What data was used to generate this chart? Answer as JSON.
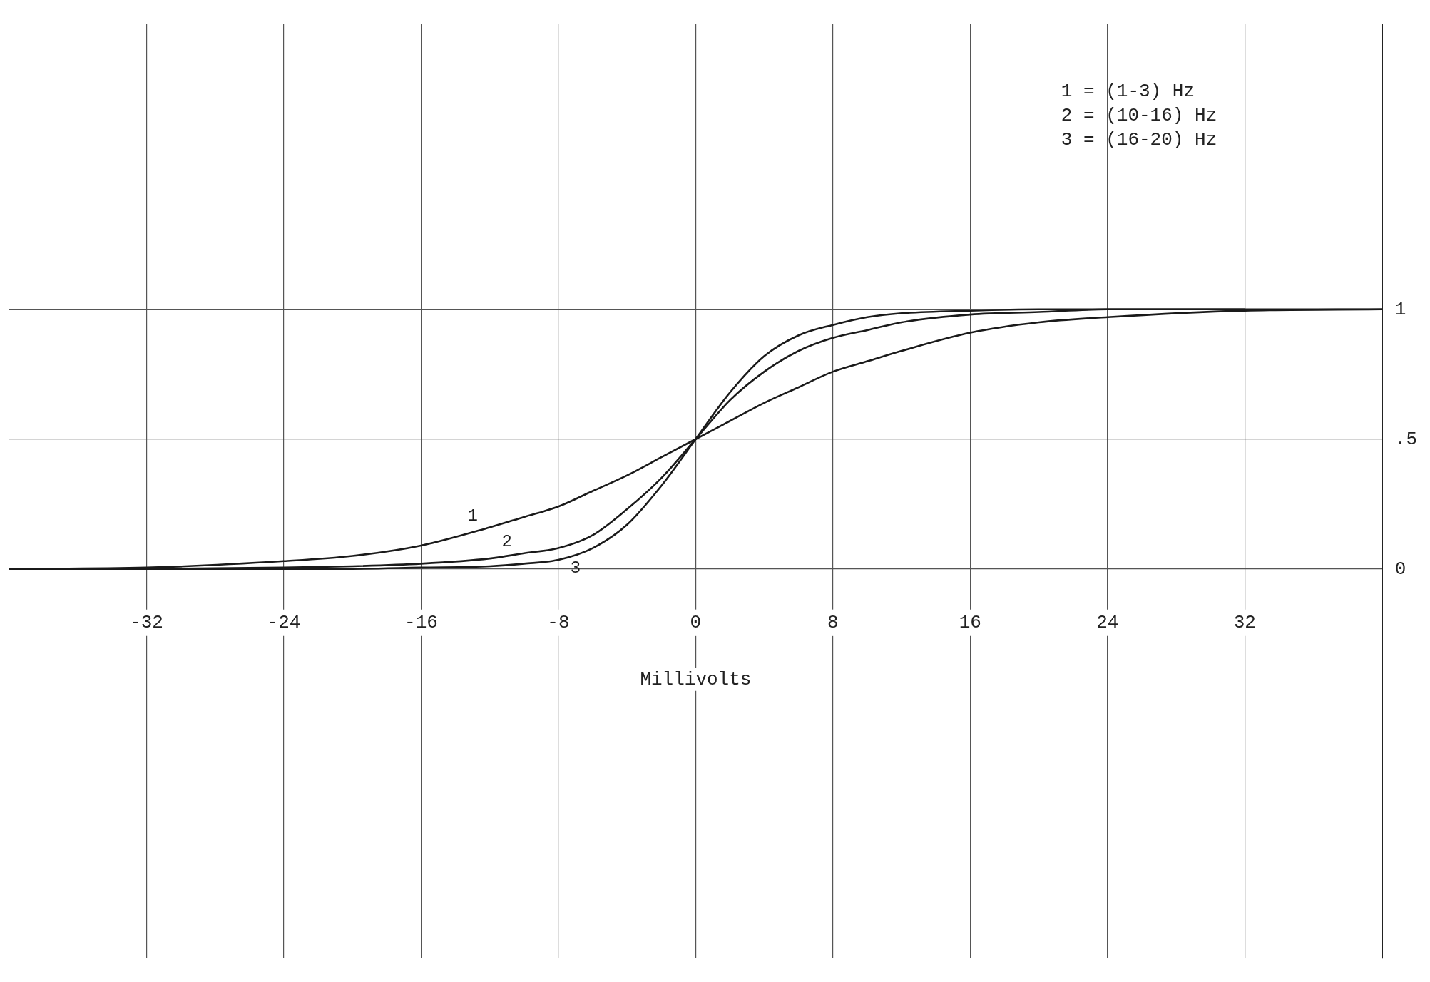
{
  "chart_data": {
    "type": "line",
    "xlabel": "Millivolts",
    "x": [
      -40,
      -32,
      -24,
      -20,
      -16,
      -12,
      -10,
      -8,
      -6,
      -4,
      -2,
      0,
      2,
      4,
      6,
      8,
      10,
      12,
      16,
      20,
      24,
      32,
      40
    ],
    "series": [
      {
        "name": "1",
        "color": "#1a1a1a",
        "values": [
          0,
          0.005,
          0.03,
          0.05,
          0.09,
          0.16,
          0.2,
          0.24,
          0.3,
          0.36,
          0.43,
          0.5,
          0.57,
          0.64,
          0.7,
          0.76,
          0.8,
          0.84,
          0.91,
          0.95,
          0.97,
          0.995,
          1
        ]
      },
      {
        "name": "2",
        "color": "#1a1a1a",
        "x": [
          -40,
          -32,
          -24,
          -20,
          -16,
          -12,
          -10,
          -8,
          -6,
          -4,
          -2,
          0,
          2,
          4,
          6,
          8,
          10,
          12,
          16,
          20,
          24,
          32
        ],
        "values": [
          0,
          0,
          0.005,
          0.01,
          0.02,
          0.04,
          0.06,
          0.08,
          0.13,
          0.23,
          0.35,
          0.5,
          0.65,
          0.76,
          0.84,
          0.89,
          0.92,
          0.95,
          0.98,
          0.99,
          1,
          1
        ]
      },
      {
        "name": "3",
        "color": "#1a1a1a",
        "x": [
          -32,
          -24,
          -20,
          -16,
          -12,
          -10,
          -8,
          -6,
          -4,
          -2,
          0,
          2,
          4,
          6,
          8,
          10,
          12,
          16,
          20,
          24,
          32,
          40
        ],
        "values": [
          0,
          0,
          0,
          0.005,
          0.01,
          0.02,
          0.035,
          0.08,
          0.17,
          0.32,
          0.5,
          0.68,
          0.82,
          0.9,
          0.94,
          0.97,
          0.985,
          0.995,
          1,
          1,
          1,
          1
        ]
      }
    ],
    "xlim": [
      -40,
      40
    ],
    "xticks": [
      -32,
      -24,
      -16,
      -8,
      0,
      8,
      16,
      24,
      32
    ],
    "ylim": [
      -1.5,
      2.1
    ],
    "yticks": [
      0,
      {
        "value": 0.5,
        "label": ".5"
      },
      1
    ],
    "grid": true,
    "legend": false,
    "marker": "none",
    "line_style": "solid",
    "annotations": [
      "1 = (1-3) Hz",
      "2 = (10-16) Hz",
      "3 = (16-20) Hz"
    ]
  }
}
